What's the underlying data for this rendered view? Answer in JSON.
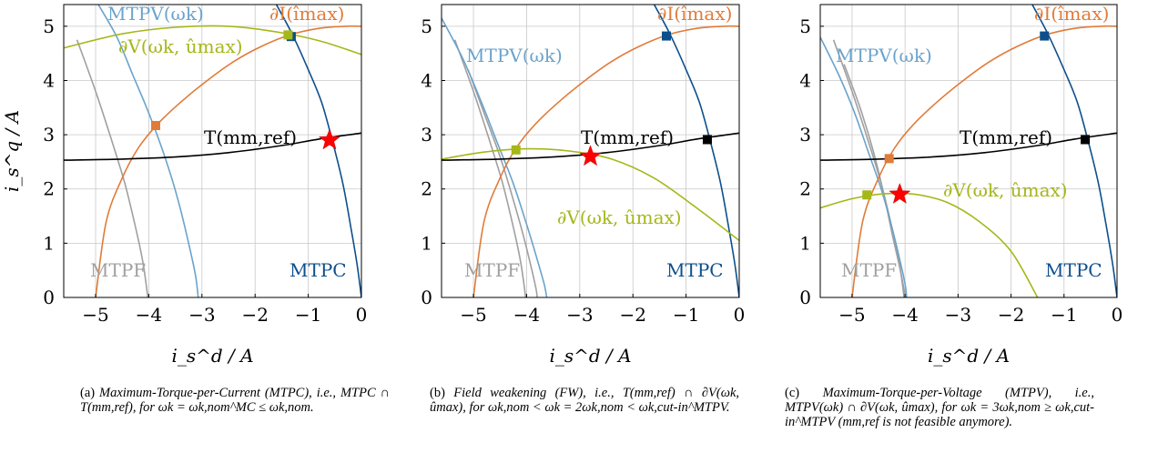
{
  "figure": {
    "xlabel": "i_s^d / A",
    "ylabel": "i_s^q / A",
    "xlim": [
      -5.6,
      0
    ],
    "ylim": [
      0,
      5.4
    ],
    "x_ticks": [
      "−5",
      "−4",
      "−3",
      "−2",
      "−1",
      "0"
    ],
    "y_ticks": [
      "0",
      "1",
      "2",
      "3",
      "4",
      "5"
    ],
    "grid": true
  },
  "colors": {
    "mtpf": "#a0a0a0",
    "mtpv": "#6aa3cc",
    "mtpc": "#0d4f8c",
    "current_limit": "#e07b39",
    "voltage_limit": "#a5b719",
    "torque": "#000000",
    "star": "#ff0000"
  },
  "chart_data": [
    {
      "type": "line",
      "panel": "a",
      "curve_labels": {
        "mtpv": "MTPV(ωk)",
        "current_limit": "∂I(îmax)",
        "voltage_limit": "∂V(ωk, ûmax)",
        "torque": "T(mm,ref)",
        "mtpf": "MTPF",
        "mtpc": "MTPC"
      },
      "series": [
        {
          "name": "MTPF",
          "color_key": "mtpf",
          "x": [
            -5.35,
            -5.0,
            -4.7,
            -4.45,
            -4.25,
            -4.12,
            -4.05,
            -4.02
          ],
          "y": [
            4.75,
            3.8,
            2.9,
            2.1,
            1.3,
            0.7,
            0.25,
            0
          ]
        },
        {
          "name": "MTPV",
          "color_key": "mtpv",
          "x": [
            -4.95,
            -4.6,
            -4.3,
            -4.0,
            -3.7,
            -3.45,
            -3.25,
            -3.12,
            -3.07
          ],
          "y": [
            5.4,
            4.8,
            4.1,
            3.4,
            2.6,
            1.8,
            1.0,
            0.4,
            0
          ]
        },
        {
          "name": "MTPC",
          "color_key": "mtpc",
          "x": [
            -1.6,
            -1.3,
            -1.0,
            -0.75,
            -0.55,
            -0.35,
            -0.2,
            -0.08,
            0.0
          ],
          "y": [
            5.4,
            4.85,
            4.2,
            3.6,
            2.9,
            2.1,
            1.3,
            0.6,
            0
          ]
        },
        {
          "name": "current limit",
          "color_key": "current_limit",
          "x": [
            -5.0,
            -4.8,
            -4.5,
            -4.2,
            -3.85,
            -3.4,
            -2.9,
            -2.4,
            -1.9,
            -1.35,
            -0.8,
            -0.3,
            0.0
          ],
          "y": [
            0,
            1.4,
            2.2,
            2.75,
            3.18,
            3.6,
            4.0,
            4.35,
            4.62,
            4.84,
            4.96,
            5.0,
            5.0
          ]
        },
        {
          "name": "voltage limit",
          "color_key": "voltage_limit",
          "x": [
            -5.6,
            -4.5,
            -3.5,
            -2.5,
            -1.5,
            -0.75,
            0.0
          ],
          "y": [
            4.6,
            4.86,
            4.98,
            5.0,
            4.88,
            4.72,
            4.48
          ]
        },
        {
          "name": "torque",
          "color_key": "torque",
          "x": [
            -5.6,
            -4.5,
            -3.5,
            -2.5,
            -1.5,
            -0.8,
            0.0
          ],
          "y": [
            2.53,
            2.55,
            2.59,
            2.67,
            2.8,
            2.92,
            3.03
          ]
        }
      ],
      "markers": [
        {
          "type": "square",
          "color_key": "current_limit",
          "x": -3.87,
          "y": 3.17
        },
        {
          "type": "square",
          "color_key": "mtpc",
          "x": -1.32,
          "y": 4.81
        },
        {
          "type": "square",
          "color_key": "voltage_limit",
          "x": -1.38,
          "y": 4.84
        },
        {
          "type": "star",
          "color_key": "star",
          "x": -0.6,
          "y": 2.9
        }
      ],
      "caption": {
        "tag": "(a)",
        "text": "Maximum-Torque-per-Current (MTPC), i.e., MTPC ∩ T(mm,ref), for ωk = ωk,nom^MC ≤ ωk,nom."
      }
    },
    {
      "type": "line",
      "panel": "b",
      "curve_labels": {
        "mtpv": "MTPV(ωk)",
        "current_limit": "∂I(îmax)",
        "voltage_limit": "∂V(ωk, ûmax)",
        "torque": "T(mm,ref)",
        "mtpf": "MTPF",
        "mtpc": "MTPC"
      },
      "series": [
        {
          "name": "MTPF",
          "color_key": "mtpf",
          "x": [
            -5.35,
            -5.0,
            -4.7,
            -4.45,
            -4.25,
            -4.12,
            -4.05,
            -4.02
          ],
          "y": [
            4.75,
            3.8,
            2.9,
            2.1,
            1.3,
            0.7,
            0.25,
            0
          ]
        },
        {
          "name": "MTPF inner",
          "color_key": "mtpf",
          "x": [
            -5.1,
            -4.8,
            -4.5,
            -4.25,
            -4.05,
            -3.9,
            -3.82,
            -3.8
          ],
          "y": [
            4.2,
            3.4,
            2.6,
            1.8,
            1.1,
            0.5,
            0.15,
            0
          ]
        },
        {
          "name": "MTPV",
          "color_key": "mtpv",
          "x": [
            -5.6,
            -5.2,
            -4.85,
            -4.55,
            -4.25,
            -4.0,
            -3.8,
            -3.67,
            -3.62
          ],
          "y": [
            5.15,
            4.4,
            3.6,
            2.85,
            2.1,
            1.35,
            0.7,
            0.25,
            0
          ]
        },
        {
          "name": "MTPC",
          "color_key": "mtpc",
          "x": [
            -1.6,
            -1.3,
            -1.0,
            -0.75,
            -0.55,
            -0.35,
            -0.2,
            -0.08,
            0.0
          ],
          "y": [
            5.4,
            4.85,
            4.2,
            3.6,
            2.9,
            2.1,
            1.3,
            0.6,
            0
          ]
        },
        {
          "name": "current limit",
          "color_key": "current_limit",
          "x": [
            -5.0,
            -4.8,
            -4.5,
            -4.2,
            -3.85,
            -3.4,
            -2.9,
            -2.4,
            -1.9,
            -1.35,
            -0.8,
            -0.3,
            0.0
          ],
          "y": [
            0,
            1.4,
            2.2,
            2.75,
            3.18,
            3.6,
            4.0,
            4.35,
            4.62,
            4.84,
            4.96,
            5.0,
            5.0
          ]
        },
        {
          "name": "voltage limit",
          "color_key": "voltage_limit",
          "x": [
            -5.6,
            -4.8,
            -4.0,
            -3.2,
            -2.4,
            -1.6,
            -0.8,
            0.0
          ],
          "y": [
            2.55,
            2.68,
            2.74,
            2.7,
            2.55,
            2.2,
            1.65,
            1.05
          ]
        },
        {
          "name": "torque",
          "color_key": "torque",
          "x": [
            -5.6,
            -4.5,
            -3.5,
            -2.5,
            -1.5,
            -0.8,
            0.0
          ],
          "y": [
            2.53,
            2.55,
            2.59,
            2.67,
            2.8,
            2.92,
            3.03
          ]
        }
      ],
      "markers": [
        {
          "type": "square",
          "color_key": "voltage_limit",
          "x": -4.2,
          "y": 2.72
        },
        {
          "type": "square",
          "color_key": "mtpc",
          "x": -1.37,
          "y": 4.82
        },
        {
          "type": "square",
          "color_key": "torque",
          "x": -0.6,
          "y": 2.91
        },
        {
          "type": "star",
          "color_key": "star",
          "x": -2.8,
          "y": 2.6
        }
      ],
      "caption": {
        "tag": "(b)",
        "text": "Field weakening (FW), i.e., T(mm,ref) ∩ ∂V(ωk, ûmax), for ωk,nom < ωk = 2ωk,nom < ωk,cut-in^MTPV."
      }
    },
    {
      "type": "line",
      "panel": "c",
      "curve_labels": {
        "mtpv": "MTPV(ωk)",
        "current_limit": "∂I(îmax)",
        "voltage_limit": "∂V(ωk, ûmax)",
        "torque": "T(mm,ref)",
        "mtpf": "MTPF",
        "mtpc": "MTPC"
      },
      "series": [
        {
          "name": "MTPF",
          "color_key": "mtpf",
          "x": [
            -5.35,
            -5.0,
            -4.7,
            -4.45,
            -4.25,
            -4.12,
            -4.05,
            -4.02
          ],
          "y": [
            4.75,
            3.8,
            2.9,
            2.1,
            1.3,
            0.7,
            0.25,
            0
          ]
        },
        {
          "name": "MTPF inner",
          "color_key": "mtpf",
          "x": [
            -5.15,
            -4.85,
            -4.6,
            -4.4,
            -4.25,
            -4.1,
            -4.02,
            -4.0
          ],
          "y": [
            4.3,
            3.5,
            2.7,
            1.9,
            1.2,
            0.55,
            0.15,
            0
          ]
        },
        {
          "name": "MTPV",
          "color_key": "mtpv",
          "x": [
            -5.6,
            -5.25,
            -4.95,
            -4.7,
            -4.45,
            -4.25,
            -4.1,
            -4.0,
            -3.97
          ],
          "y": [
            4.8,
            4.1,
            3.4,
            2.7,
            2.0,
            1.3,
            0.7,
            0.25,
            0
          ]
        },
        {
          "name": "MTPC",
          "color_key": "mtpc",
          "x": [
            -1.6,
            -1.3,
            -1.0,
            -0.75,
            -0.55,
            -0.35,
            -0.2,
            -0.08,
            0.0
          ],
          "y": [
            5.4,
            4.85,
            4.2,
            3.6,
            2.9,
            2.1,
            1.3,
            0.6,
            0
          ]
        },
        {
          "name": "current limit",
          "color_key": "current_limit",
          "x": [
            -5.0,
            -4.8,
            -4.5,
            -4.2,
            -3.85,
            -3.4,
            -2.9,
            -2.4,
            -1.9,
            -1.35,
            -0.8,
            -0.3,
            0.0
          ],
          "y": [
            0,
            1.4,
            2.2,
            2.75,
            3.18,
            3.6,
            4.0,
            4.35,
            4.62,
            4.84,
            4.96,
            5.0,
            5.0
          ]
        },
        {
          "name": "voltage limit",
          "color_key": "voltage_limit",
          "x": [
            -5.6,
            -5.0,
            -4.4,
            -3.8,
            -3.2,
            -2.6,
            -2.0,
            -1.5
          ],
          "y": [
            1.65,
            1.82,
            1.91,
            1.9,
            1.75,
            1.4,
            0.85,
            0
          ]
        },
        {
          "name": "torque",
          "color_key": "torque",
          "x": [
            -5.6,
            -4.5,
            -3.5,
            -2.5,
            -1.5,
            -0.8,
            0.0
          ],
          "y": [
            2.53,
            2.55,
            2.59,
            2.67,
            2.8,
            2.92,
            3.03
          ]
        }
      ],
      "markers": [
        {
          "type": "square",
          "color_key": "current_limit",
          "x": -4.3,
          "y": 2.56
        },
        {
          "type": "square",
          "color_key": "voltage_limit",
          "x": -4.72,
          "y": 1.89
        },
        {
          "type": "square",
          "color_key": "mtpc",
          "x": -1.37,
          "y": 4.82
        },
        {
          "type": "square",
          "color_key": "torque",
          "x": -0.6,
          "y": 2.91
        },
        {
          "type": "star",
          "color_key": "star",
          "x": -4.1,
          "y": 1.9
        }
      ],
      "caption": {
        "tag": "(c)",
        "text": "Maximum-Torque-per-Voltage (MTPV), i.e., MTPV(ωk) ∩ ∂V(ωk, ûmax), for ωk = 3ωk,nom ≥ ωk,cut-in^MTPV (mm,ref is not feasible anymore)."
      }
    }
  ]
}
